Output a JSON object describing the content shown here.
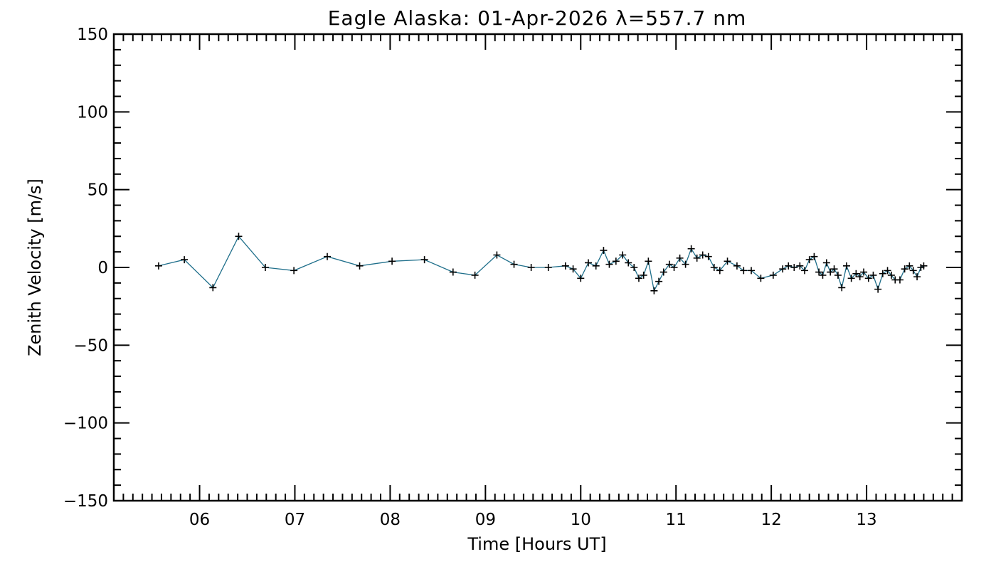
{
  "chart_data": {
    "type": "line",
    "title": "Eagle Alaska: 01-Apr-2026 λ=557.7 nm",
    "xlabel": "Time [Hours UT]",
    "ylabel": "Zenith Velocity [m/s]",
    "xlim": [
      5.1,
      14.0
    ],
    "ylim": [
      -150,
      150
    ],
    "x_ticks": [
      6,
      7,
      8,
      9,
      10,
      11,
      12,
      13
    ],
    "x_tick_labels": [
      "06",
      "07",
      "08",
      "09",
      "10",
      "11",
      "12",
      "13"
    ],
    "y_ticks": [
      -150,
      -100,
      -50,
      0,
      50,
      100,
      150
    ],
    "y_tick_labels": [
      "−150",
      "−100",
      "−50",
      "0",
      "50",
      "100",
      "150"
    ],
    "x_minor_step": 0.1,
    "y_minor_step": 10,
    "grid": false,
    "line_color": "#1f6f8b",
    "marker_color": "#000000",
    "marker": "plus",
    "series": [
      {
        "name": "Zenith Velocity",
        "x": [
          5.57,
          5.84,
          6.14,
          6.41,
          6.69,
          6.99,
          7.34,
          7.68,
          8.02,
          8.36,
          8.66,
          8.89,
          9.12,
          9.3,
          9.48,
          9.66,
          9.84,
          9.92,
          10.0,
          10.08,
          10.16,
          10.24,
          10.3,
          10.37,
          10.44,
          10.5,
          10.56,
          10.61,
          10.66,
          10.71,
          10.77,
          10.82,
          10.87,
          10.93,
          10.98,
          11.04,
          11.1,
          11.16,
          11.22,
          11.28,
          11.34,
          11.4,
          11.46,
          11.54,
          11.64,
          11.71,
          11.79,
          11.89,
          12.02,
          12.12,
          12.18,
          12.24,
          12.3,
          12.35,
          12.4,
          12.45,
          12.5,
          12.54,
          12.58,
          12.62,
          12.66,
          12.7,
          12.74,
          12.79,
          12.84,
          12.89,
          12.93,
          12.97,
          13.02,
          13.07,
          13.12,
          13.17,
          13.22,
          13.26,
          13.3,
          13.35,
          13.4,
          13.45,
          13.49,
          13.53,
          13.57,
          13.6
        ],
        "y": [
          1,
          5,
          -13,
          20,
          0,
          -2,
          7,
          1,
          4,
          5,
          -3,
          -5,
          8,
          2,
          0,
          0,
          1,
          -1,
          -7,
          3,
          1,
          11,
          2,
          4,
          8,
          3,
          0,
          -7,
          -5,
          4,
          -15,
          -9,
          -3,
          2,
          0,
          6,
          2,
          12,
          6,
          8,
          7,
          0,
          -2,
          4,
          1,
          -2,
          -2,
          -7,
          -5,
          -1,
          1,
          0,
          1,
          -2,
          5,
          7,
          -3,
          -5,
          3,
          -3,
          -1,
          -5,
          -13,
          1,
          -7,
          -4,
          -6,
          -3,
          -7,
          -5,
          -14,
          -4,
          -2,
          -5,
          -8,
          -8,
          -1,
          1,
          -2,
          -6,
          0,
          1
        ]
      }
    ]
  }
}
